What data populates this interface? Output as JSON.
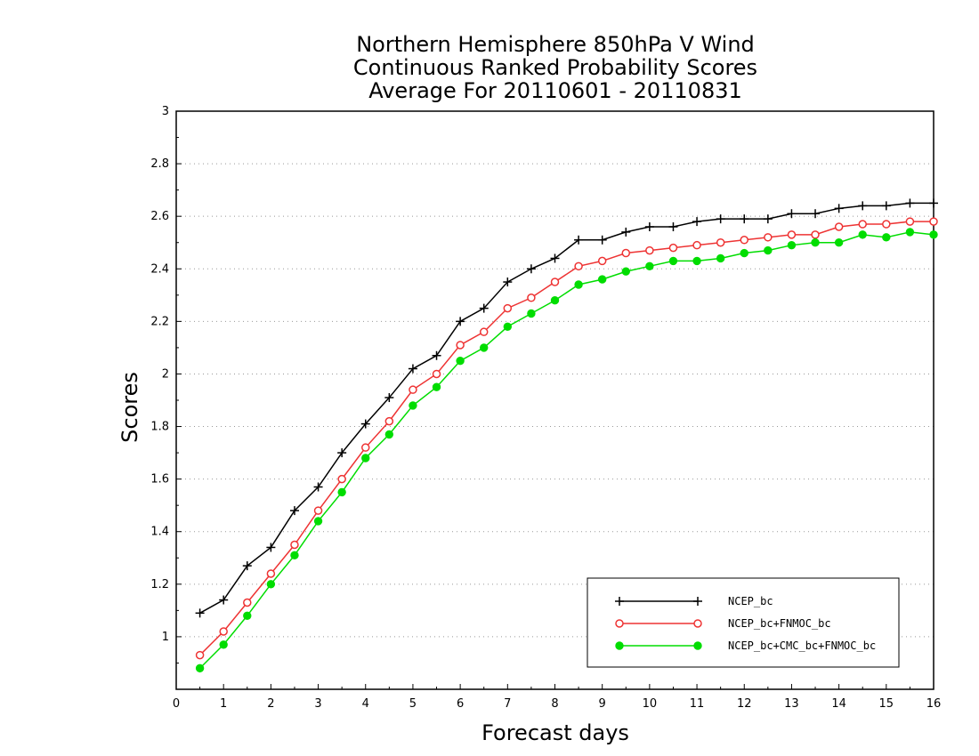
{
  "chart_data": {
    "type": "line",
    "title": [
      "Northern Hemisphere 850hPa V Wind",
      "Continuous Ranked Probability Scores",
      "Average For 20110601 - 20110831"
    ],
    "xlabel": "Forecast days",
    "ylabel": "Scores",
    "xlim": [
      0,
      16
    ],
    "ylim": [
      0.8,
      3.0
    ],
    "xticks": [
      0,
      1,
      2,
      3,
      4,
      5,
      6,
      7,
      8,
      9,
      10,
      11,
      12,
      13,
      14,
      15,
      16
    ],
    "xtick_labels": [
      "0",
      "1",
      "2",
      "3",
      "4",
      "5",
      "6",
      "7",
      "8",
      "9",
      "10",
      "11",
      "12",
      "13",
      "14",
      "15",
      "16"
    ],
    "yticks": [
      1.0,
      1.2,
      1.4,
      1.6,
      1.8,
      2.0,
      2.2,
      2.4,
      2.6,
      2.8,
      3.0
    ],
    "ytick_labels": [
      "1",
      "1.2",
      "1.4",
      "1.6",
      "1.8",
      "2",
      "2.2",
      "2.4",
      "2.6",
      "2.8",
      "3"
    ],
    "grid": "horizontal dotted",
    "legend_position": "bottom-right",
    "x": [
      0.5,
      1,
      1.5,
      2,
      2.5,
      3,
      3.5,
      4,
      4.5,
      5,
      5.5,
      6,
      6.5,
      7,
      7.5,
      8,
      8.5,
      9,
      9.5,
      10,
      10.5,
      11,
      11.5,
      12,
      12.5,
      13,
      13.5,
      14,
      14.5,
      15,
      15.5,
      16
    ],
    "series": [
      {
        "name": "NCEP_bc",
        "color": "#000000",
        "marker": "plus",
        "values": [
          1.09,
          1.14,
          1.27,
          1.34,
          1.48,
          1.57,
          1.7,
          1.81,
          1.91,
          2.02,
          2.07,
          2.2,
          2.25,
          2.35,
          2.4,
          2.44,
          2.51,
          2.51,
          2.54,
          2.56,
          2.56,
          2.58,
          2.59,
          2.59,
          2.59,
          2.61,
          2.61,
          2.63,
          2.64,
          2.64,
          2.65,
          2.65
        ]
      },
      {
        "name": "NCEP_bc+FNMOC_bc",
        "color": "#ee3333",
        "marker": "open-circle",
        "values": [
          0.93,
          1.02,
          1.13,
          1.24,
          1.35,
          1.48,
          1.6,
          1.72,
          1.82,
          1.94,
          2.0,
          2.11,
          2.16,
          2.25,
          2.29,
          2.35,
          2.41,
          2.43,
          2.46,
          2.47,
          2.48,
          2.49,
          2.5,
          2.51,
          2.52,
          2.53,
          2.53,
          2.56,
          2.57,
          2.57,
          2.58,
          2.58
        ]
      },
      {
        "name": "NCEP_bc+CMC_bc+FNMOC_bc",
        "color": "#00dd00",
        "marker": "filled-circle",
        "values": [
          0.88,
          0.97,
          1.08,
          1.2,
          1.31,
          1.44,
          1.55,
          1.68,
          1.77,
          1.88,
          1.95,
          2.05,
          2.1,
          2.18,
          2.23,
          2.28,
          2.34,
          2.36,
          2.39,
          2.41,
          2.43,
          2.43,
          2.44,
          2.46,
          2.47,
          2.49,
          2.5,
          2.5,
          2.53,
          2.52,
          2.54,
          2.53
        ]
      }
    ]
  }
}
